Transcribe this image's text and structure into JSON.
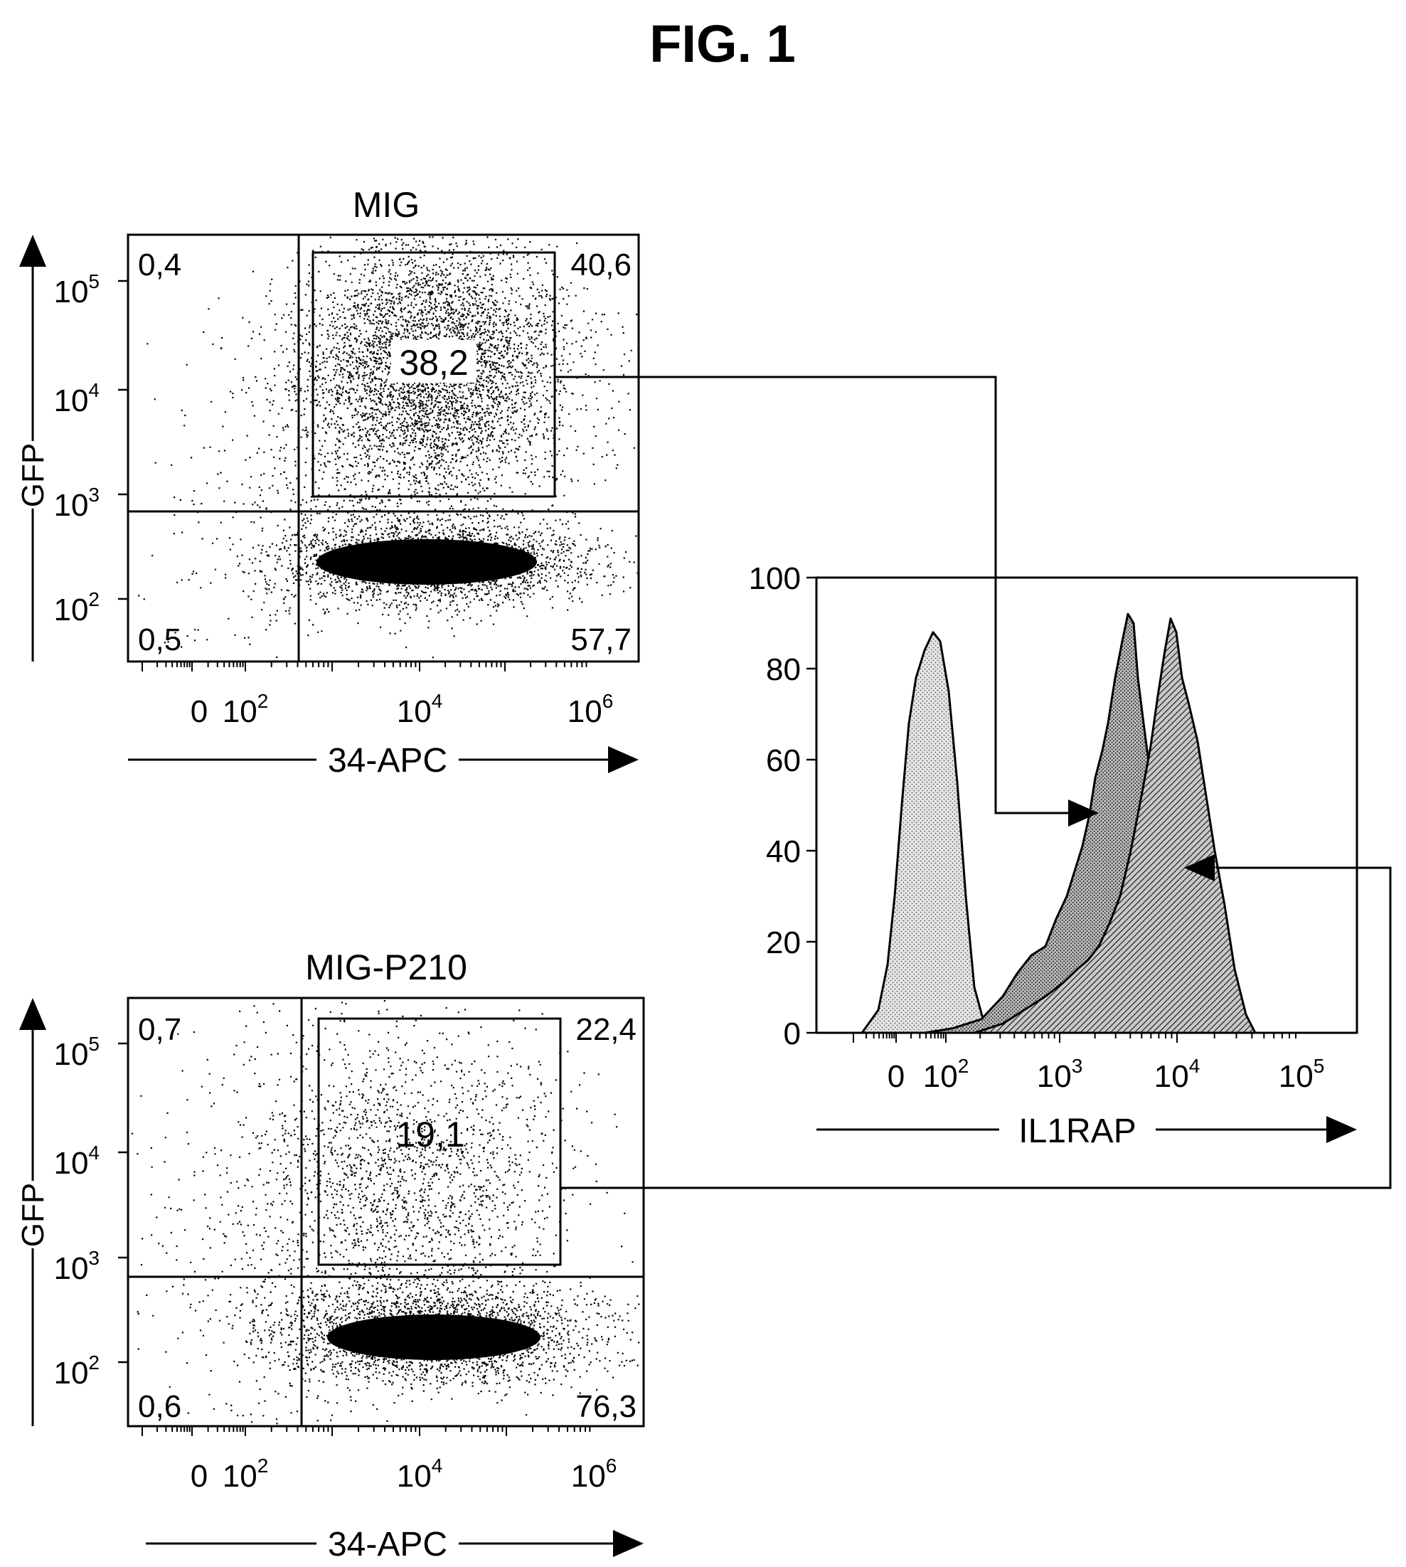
{
  "figure_title": "FIG. 1",
  "colors": {
    "ink": "#000000",
    "paper": "#ffffff",
    "light_fill": "#dcdcdc",
    "mid_fill": "#a8a8a8",
    "dark_fill": "#7a7a7a"
  },
  "chart_data": [
    {
      "type": "scatter",
      "title": "MIG",
      "xlabel": "34-APC",
      "ylabel": "GFP",
      "x_scale": "log",
      "y_scale": "log",
      "x_ticks": [
        "0",
        "10^2",
        "10^4",
        "10^6"
      ],
      "y_ticks": [
        "10^2",
        "10^3",
        "10^4",
        "10^5"
      ],
      "quadrants": {
        "upper_left": "0,4",
        "upper_right": "40,6",
        "lower_left": "0,5",
        "lower_right": "57,7"
      },
      "gate_label": "38,2",
      "populations": [
        {
          "name": "",
          "x_center": 10000,
          "y_center": 200,
          "density": "very high"
        },
        {
          "name": "",
          "x_center": 10000,
          "y_center": 20000,
          "density": "high"
        }
      ]
    },
    {
      "type": "scatter",
      "title": "MIG-P210",
      "xlabel": "34-APC",
      "ylabel": "GFP",
      "x_scale": "log",
      "y_scale": "log",
      "x_ticks": [
        "0",
        "10^2",
        "10^4",
        "10^6"
      ],
      "y_ticks": [
        "10^2",
        "10^3",
        "10^4",
        "10^5"
      ],
      "quadrants": {
        "upper_left": "0,7",
        "upper_right": "22,4",
        "lower_left": "0,6",
        "lower_right": "76,3"
      },
      "gate_label": "19,1",
      "populations": [
        {
          "name": "",
          "x_center": 10000,
          "y_center": 200,
          "density": "very high"
        },
        {
          "name": "",
          "x_center": 5000,
          "y_center": 8000,
          "density": "medium"
        }
      ]
    },
    {
      "type": "area",
      "title": "",
      "xlabel": "IL1RAP",
      "ylabel": "",
      "x_scale": "log",
      "x_ticks": [
        "0",
        "10^2",
        "10^3",
        "10^4",
        "10^5"
      ],
      "y_ticks": [
        "0",
        "20",
        "40",
        "60",
        "80",
        "100"
      ],
      "ylim": [
        0,
        100
      ],
      "series": [
        {
          "name": "",
          "peak_x": 80,
          "peak_y": 88,
          "fill": "light"
        },
        {
          "name": "",
          "peak_x": 3200,
          "peak_y": 92,
          "fill": "mid"
        },
        {
          "name": "",
          "peak_x": 8000,
          "peak_y": 91,
          "fill": "dark"
        }
      ]
    }
  ]
}
